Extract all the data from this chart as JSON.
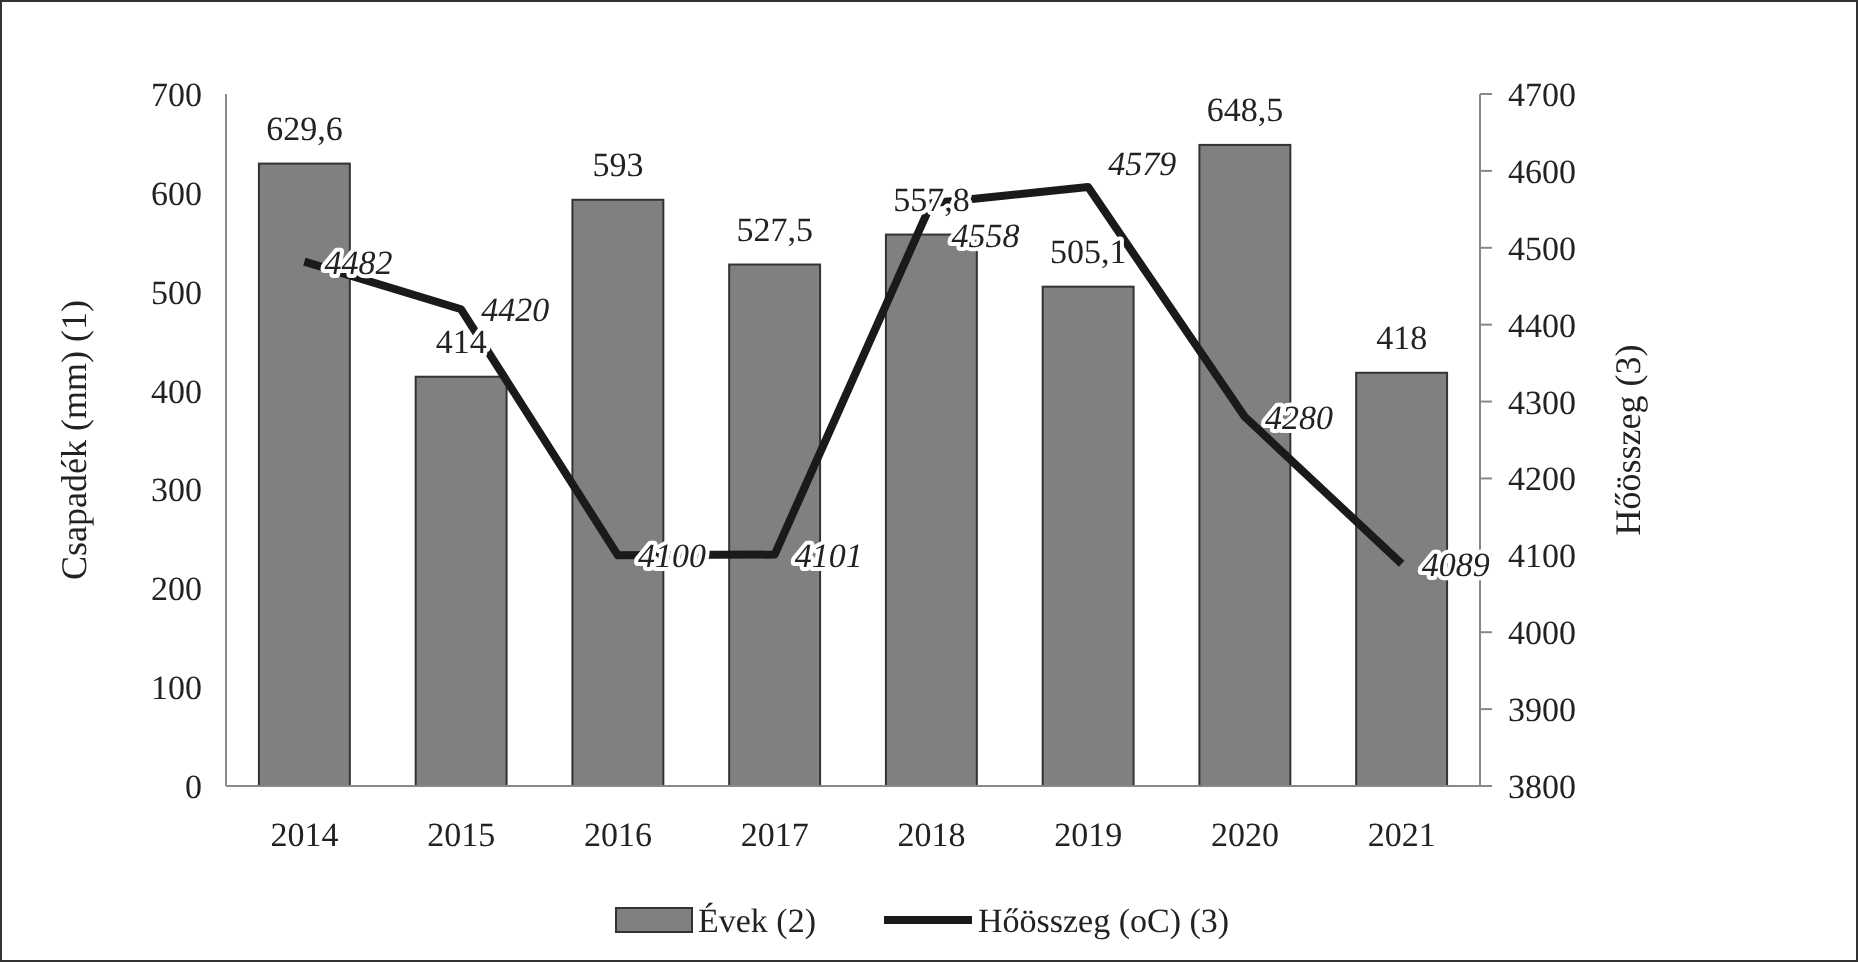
{
  "chart_data": {
    "type": "bar",
    "categories": [
      "2014",
      "2015",
      "2016",
      "2017",
      "2018",
      "2019",
      "2020",
      "2021"
    ],
    "ylabel": "Csapadék (mm) (1)",
    "y2label": "Hőösszeg (3)",
    "ylim": [
      0,
      700
    ],
    "yticks": [
      0,
      100,
      200,
      300,
      400,
      500,
      600,
      700
    ],
    "y2lim": [
      3800,
      4700
    ],
    "y2ticks": [
      3800,
      3900,
      4000,
      4100,
      4200,
      4300,
      4400,
      4500,
      4600,
      4700
    ],
    "legend": "bottom",
    "grid": false,
    "series": [
      {
        "name": "Évek (2)",
        "color": "#808080",
        "values": [
          629.6,
          414,
          593,
          527.5,
          557.8,
          505.1,
          648.5,
          418
        ],
        "value_labels": [
          "629,6",
          "414",
          "593",
          "527,5",
          "557,8",
          "505,1",
          "648,5",
          "418"
        ]
      },
      {
        "name": "Hőösszeg (oC) (3)",
        "type": "line",
        "axis": "y2",
        "color": "#1a1a1a",
        "values": [
          4482,
          4420,
          4100,
          4101,
          4558,
          4579,
          4280,
          4089
        ],
        "value_labels": [
          "4482",
          "4420",
          "4100",
          "4101",
          "4558",
          "4579",
          "4280",
          "4089"
        ]
      }
    ]
  }
}
